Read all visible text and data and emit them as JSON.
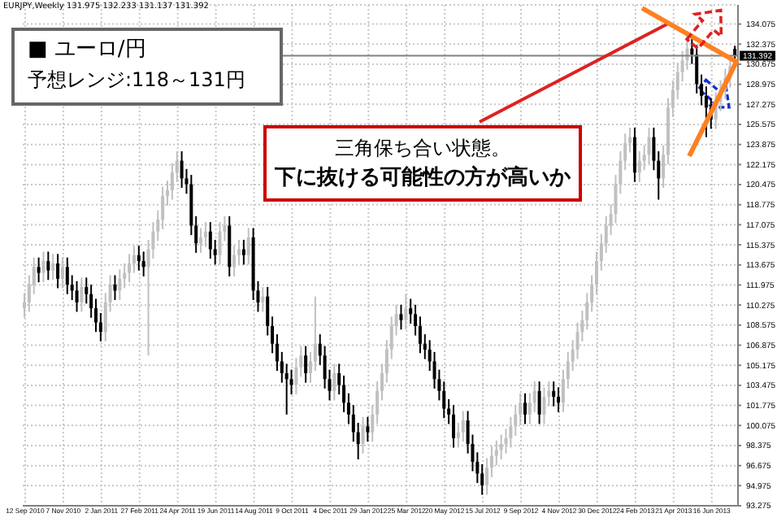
{
  "chart_data": {
    "type": "candlestick",
    "annotations": [
      "EURJPY,Weekly 131.975 132.233 131.137 131.392",
      "■ ユーロ/円",
      "予想レンジ:118～131円",
      "三角保ち合い状態。",
      "下に抜ける可能性の方が高いか"
    ],
    "categories": [
      "12 Sep 2010",
      null,
      null,
      null,
      null,
      null,
      null,
      null,
      "7 Nov 2010",
      null,
      null,
      null,
      null,
      null,
      null,
      null,
      "2 Jan 2011",
      null,
      null,
      null,
      null,
      null,
      null,
      null,
      "27 Feb 2011",
      null,
      null,
      null,
      null,
      null,
      null,
      null,
      "24 Apr 2011",
      null,
      null,
      null,
      null,
      null,
      null,
      null,
      "19 Jun 2011",
      null,
      null,
      null,
      null,
      null,
      null,
      null,
      "14 Aug 2011",
      null,
      null,
      null,
      null,
      null,
      null,
      null,
      "9 Oct 2011",
      null,
      null,
      null,
      null,
      null,
      null,
      null,
      "4 Dec 2011",
      null,
      null,
      null,
      null,
      null,
      null,
      null,
      "29 Jan 2012",
      null,
      null,
      null,
      null,
      null,
      null,
      null,
      "25 Mar 2012",
      null,
      null,
      null,
      null,
      null,
      null,
      null,
      "20 May 2012",
      null,
      null,
      null,
      null,
      null,
      null,
      null,
      "15 Jul 2012",
      null,
      null,
      null,
      null,
      null,
      null,
      null,
      "9 Sep 2012",
      null,
      null,
      null,
      null,
      null,
      null,
      null,
      "4 Nov 2012",
      null,
      null,
      null,
      null,
      null,
      null,
      null,
      "30 Dec 2012",
      null,
      null,
      null,
      null,
      null,
      null,
      null,
      "24 Feb 2013",
      null,
      null,
      null,
      null,
      null,
      null,
      null,
      "21 Apr 2013",
      null,
      null,
      null,
      null,
      null,
      null,
      null,
      "16 Jun 2013",
      null,
      null,
      null,
      null,
      null
    ],
    "ohlc": [
      [
        110.0,
        111.3,
        109.2,
        110.5
      ],
      [
        110.5,
        112.8,
        109.7,
        112.0
      ],
      [
        112.0,
        114.3,
        111.2,
        113.5
      ],
      [
        113.5,
        114.3,
        112.2,
        113.0
      ],
      [
        113.0,
        114.8,
        112.2,
        114.0
      ],
      [
        114.0,
        114.8,
        112.4,
        113.2
      ],
      [
        113.2,
        114.6,
        112.4,
        113.8
      ],
      [
        113.8,
        114.6,
        111.7,
        112.5
      ],
      [
        112.5,
        114.3,
        111.7,
        113.5
      ],
      [
        113.5,
        114.3,
        111.2,
        112.0
      ],
      [
        112.0,
        112.8,
        110.7,
        111.5
      ],
      [
        111.5,
        112.3,
        109.7,
        110.5
      ],
      [
        110.5,
        112.6,
        109.7,
        111.8
      ],
      [
        111.8,
        112.6,
        110.4,
        111.2
      ],
      [
        111.2,
        112.0,
        109.2,
        110.0
      ],
      [
        110.0,
        110.8,
        108.0,
        108.8
      ],
      [
        108.8,
        109.6,
        107.2,
        108.0
      ],
      [
        108.0,
        111.3,
        107.2,
        110.5
      ],
      [
        110.5,
        112.8,
        109.7,
        112.0
      ],
      [
        112.0,
        112.8,
        110.7,
        111.5
      ],
      [
        111.5,
        113.3,
        110.7,
        112.5
      ],
      [
        112.5,
        113.8,
        111.7,
        113.0
      ],
      [
        113.0,
        114.6,
        112.2,
        113.8
      ],
      [
        113.8,
        115.3,
        113.0,
        114.5
      ],
      [
        114.5,
        115.3,
        113.2,
        114.0
      ],
      [
        114.0,
        114.8,
        112.7,
        113.5
      ],
      [
        113.5,
        115.8,
        106.0,
        115.0
      ],
      [
        115.0,
        117.3,
        114.2,
        116.5
      ],
      [
        116.5,
        118.3,
        115.7,
        117.5
      ],
      [
        117.5,
        120.3,
        116.7,
        119.5
      ],
      [
        119.5,
        120.8,
        118.7,
        120.0
      ],
      [
        120.0,
        122.3,
        119.2,
        121.5
      ],
      [
        121.5,
        123.3,
        120.7,
        122.5
      ],
      [
        122.5,
        123.3,
        120.2,
        121.0
      ],
      [
        121.0,
        121.8,
        119.7,
        120.5
      ],
      [
        120.5,
        121.3,
        116.2,
        117.0
      ],
      [
        117.0,
        117.8,
        114.7,
        115.5
      ],
      [
        115.5,
        116.8,
        114.7,
        116.0
      ],
      [
        116.0,
        117.3,
        115.2,
        116.5
      ],
      [
        116.5,
        117.3,
        114.2,
        115.0
      ],
      [
        115.0,
        115.8,
        113.7,
        114.5
      ],
      [
        114.5,
        117.3,
        113.7,
        116.5
      ],
      [
        116.5,
        117.8,
        115.7,
        117.0
      ],
      [
        117.0,
        117.8,
        112.7,
        113.5
      ],
      [
        113.5,
        115.3,
        112.7,
        114.5
      ],
      [
        114.5,
        115.8,
        113.7,
        115.0
      ],
      [
        115.0,
        115.8,
        113.7,
        114.5
      ],
      [
        114.5,
        116.8,
        113.7,
        116.0
      ],
      [
        116.0,
        116.8,
        110.7,
        111.5
      ],
      [
        111.5,
        112.3,
        109.7,
        110.5
      ],
      [
        110.5,
        111.8,
        109.7,
        111.0
      ],
      [
        111.0,
        111.8,
        107.7,
        108.5
      ],
      [
        108.5,
        109.3,
        106.2,
        107.0
      ],
      [
        107.0,
        107.8,
        104.7,
        105.5
      ],
      [
        105.5,
        106.3,
        103.7,
        104.5
      ],
      [
        104.5,
        105.3,
        101.0,
        104.0
      ],
      [
        104.0,
        104.8,
        102.7,
        103.5
      ],
      [
        103.5,
        105.8,
        102.7,
        105.0
      ],
      [
        105.0,
        106.8,
        104.2,
        106.0
      ],
      [
        106.0,
        106.8,
        103.7,
        104.5
      ],
      [
        104.5,
        106.3,
        103.7,
        105.5
      ],
      [
        105.5,
        111.0,
        104.7,
        107.0
      ],
      [
        107.0,
        107.8,
        105.2,
        106.0
      ],
      [
        106.0,
        106.8,
        103.2,
        104.0
      ],
      [
        104.0,
        104.8,
        102.2,
        103.0
      ],
      [
        103.0,
        105.3,
        102.2,
        104.5
      ],
      [
        104.5,
        105.3,
        102.7,
        103.5
      ],
      [
        103.5,
        104.3,
        101.2,
        102.0
      ],
      [
        102.0,
        102.8,
        100.2,
        101.0
      ],
      [
        101.0,
        101.8,
        98.7,
        99.5
      ],
      [
        99.5,
        100.3,
        97.2,
        98.5
      ],
      [
        98.5,
        100.8,
        97.7,
        100.0
      ],
      [
        100.0,
        100.8,
        98.7,
        99.5
      ],
      [
        99.5,
        101.8,
        98.7,
        101.0
      ],
      [
        101.0,
        103.8,
        100.2,
        103.0
      ],
      [
        103.0,
        105.3,
        102.2,
        104.5
      ],
      [
        104.5,
        107.3,
        103.7,
        106.5
      ],
      [
        106.5,
        109.3,
        105.7,
        108.5
      ],
      [
        108.5,
        110.3,
        107.7,
        109.5
      ],
      [
        109.5,
        110.3,
        108.2,
        109.0
      ],
      [
        109.0,
        111.2,
        108.2,
        110.0
      ],
      [
        110.0,
        110.8,
        108.7,
        109.5
      ],
      [
        109.5,
        110.3,
        107.7,
        108.5
      ],
      [
        108.5,
        109.3,
        106.2,
        107.0
      ],
      [
        107.0,
        107.8,
        105.7,
        106.5
      ],
      [
        106.5,
        107.3,
        104.7,
        105.5
      ],
      [
        105.5,
        106.3,
        103.2,
        104.0
      ],
      [
        104.0,
        104.8,
        102.2,
        103.0
      ],
      [
        103.0,
        103.8,
        100.7,
        101.5
      ],
      [
        101.5,
        102.3,
        100.2,
        101.0
      ],
      [
        101.0,
        101.8,
        98.2,
        99.0
      ],
      [
        99.0,
        100.3,
        98.2,
        99.5
      ],
      [
        99.5,
        101.3,
        98.7,
        100.5
      ],
      [
        100.5,
        101.3,
        97.7,
        98.5
      ],
      [
        98.5,
        99.3,
        96.2,
        97.0
      ],
      [
        97.0,
        97.8,
        95.2,
        96.0
      ],
      [
        96.0,
        96.8,
        94.2,
        95.0
      ],
      [
        95.0,
        97.3,
        94.2,
        96.5
      ],
      [
        96.5,
        98.3,
        95.7,
        97.5
      ],
      [
        97.5,
        98.8,
        96.7,
        98.0
      ],
      [
        98.0,
        99.3,
        97.2,
        98.5
      ],
      [
        98.5,
        99.8,
        97.7,
        99.0
      ],
      [
        99.0,
        100.8,
        98.2,
        100.0
      ],
      [
        100.0,
        101.8,
        99.2,
        101.0
      ],
      [
        101.0,
        102.8,
        100.2,
        102.0
      ],
      [
        102.0,
        102.8,
        100.2,
        101.0
      ],
      [
        101.0,
        102.8,
        100.2,
        102.0
      ],
      [
        102.0,
        103.8,
        101.2,
        103.0
      ],
      [
        103.0,
        103.8,
        100.2,
        101.0
      ],
      [
        101.0,
        103.3,
        100.2,
        102.5
      ],
      [
        102.5,
        103.8,
        101.7,
        103.0
      ],
      [
        103.0,
        103.8,
        101.7,
        102.5
      ],
      [
        102.5,
        103.3,
        101.2,
        102.0
      ],
      [
        102.0,
        104.8,
        101.2,
        104.0
      ],
      [
        104.0,
        106.3,
        103.2,
        105.5
      ],
      [
        105.5,
        107.3,
        104.7,
        106.5
      ],
      [
        106.5,
        108.8,
        105.7,
        108.0
      ],
      [
        108.0,
        109.8,
        107.2,
        109.0
      ],
      [
        109.0,
        111.3,
        108.2,
        110.5
      ],
      [
        110.5,
        112.8,
        109.7,
        112.0
      ],
      [
        112.0,
        114.8,
        111.2,
        114.0
      ],
      [
        114.0,
        116.3,
        113.2,
        115.5
      ],
      [
        115.5,
        117.8,
        114.7,
        117.0
      ],
      [
        117.0,
        118.8,
        116.2,
        118.0
      ],
      [
        118.0,
        121.3,
        117.2,
        120.5
      ],
      [
        120.5,
        123.3,
        119.7,
        122.5
      ],
      [
        122.5,
        124.8,
        121.7,
        124.0
      ],
      [
        124.0,
        125.3,
        123.2,
        124.5
      ],
      [
        124.5,
        125.3,
        120.7,
        121.5
      ],
      [
        121.5,
        123.3,
        120.7,
        122.5
      ],
      [
        122.5,
        123.8,
        121.7,
        123.0
      ],
      [
        123.0,
        125.3,
        122.2,
        124.5
      ],
      [
        124.5,
        125.3,
        121.7,
        122.5
      ],
      [
        122.5,
        123.3,
        119.2,
        121.0
      ],
      [
        121.0,
        123.8,
        120.2,
        123.0
      ],
      [
        123.0,
        127.8,
        122.2,
        127.0
      ],
      [
        127.0,
        129.3,
        126.2,
        128.5
      ],
      [
        128.5,
        130.8,
        127.7,
        130.0
      ],
      [
        130.0,
        131.8,
        129.2,
        131.0
      ],
      [
        131.0,
        133.5,
        130.2,
        132.0
      ],
      [
        132.0,
        132.8,
        130.7,
        131.5
      ],
      [
        131.5,
        132.3,
        128.2,
        129.0
      ],
      [
        129.0,
        129.8,
        127.2,
        128.0
      ],
      [
        128.0,
        128.8,
        124.5,
        127.0
      ],
      [
        127.0,
        127.8,
        125.2,
        126.0
      ],
      [
        126.0,
        128.3,
        125.2,
        127.5
      ],
      [
        127.5,
        129.3,
        126.7,
        128.5
      ],
      [
        128.5,
        130.3,
        127.7,
        129.5
      ],
      [
        129.5,
        131.3,
        128.7,
        130.5
      ],
      [
        131.975,
        132.233,
        131.137,
        131.392
      ]
    ],
    "ylim": [
      93.275,
      135.7
    ],
    "yticks": [
      93.275,
      94.975,
      96.675,
      98.375,
      100.075,
      101.775,
      103.475,
      105.175,
      106.875,
      108.575,
      110.275,
      111.975,
      113.675,
      115.375,
      117.075,
      118.775,
      120.475,
      122.175,
      123.875,
      125.575,
      127.275,
      128.975,
      130.675,
      132.375,
      134.075
    ],
    "ref_lines": [
      {
        "axis": "y",
        "value": 131.392,
        "label": "131.392",
        "color": "#808080"
      }
    ],
    "grid": true
  }
}
